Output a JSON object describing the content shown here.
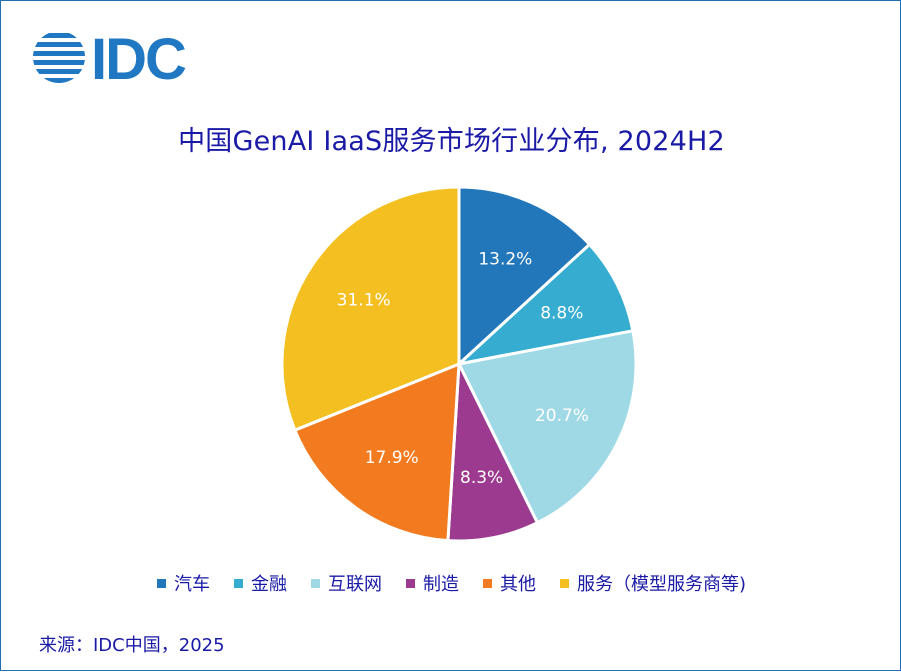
{
  "logo": {
    "text": "IDC",
    "color": "#1f78c1"
  },
  "title": "中国GenAI IaaS服务市场行业分布, 2024H2",
  "chart_data": {
    "type": "pie",
    "title": "中国GenAI IaaS服务市场行业分布, 2024H2",
    "start_angle_deg": 0,
    "direction": "clockwise",
    "slices": [
      {
        "label": "汽车",
        "value": 13.2,
        "display": "13.2%",
        "color": "#2277bb"
      },
      {
        "label": "金融",
        "value": 8.8,
        "display": "8.8%",
        "color": "#35acd0"
      },
      {
        "label": "互联网",
        "value": 20.7,
        "display": "20.7%",
        "color": "#9fd9e6"
      },
      {
        "label": "制造",
        "value": 8.3,
        "display": "8.3%",
        "color": "#9b3a8f"
      },
      {
        "label": "其他",
        "value": 17.9,
        "display": "17.9%",
        "color": "#f27b1f"
      },
      {
        "label": "服务（模型服务商等)",
        "value": 31.1,
        "display": "31.1%",
        "color": "#f4c021"
      }
    ],
    "legend_position": "bottom"
  },
  "source": "来源：IDC中国，2025"
}
